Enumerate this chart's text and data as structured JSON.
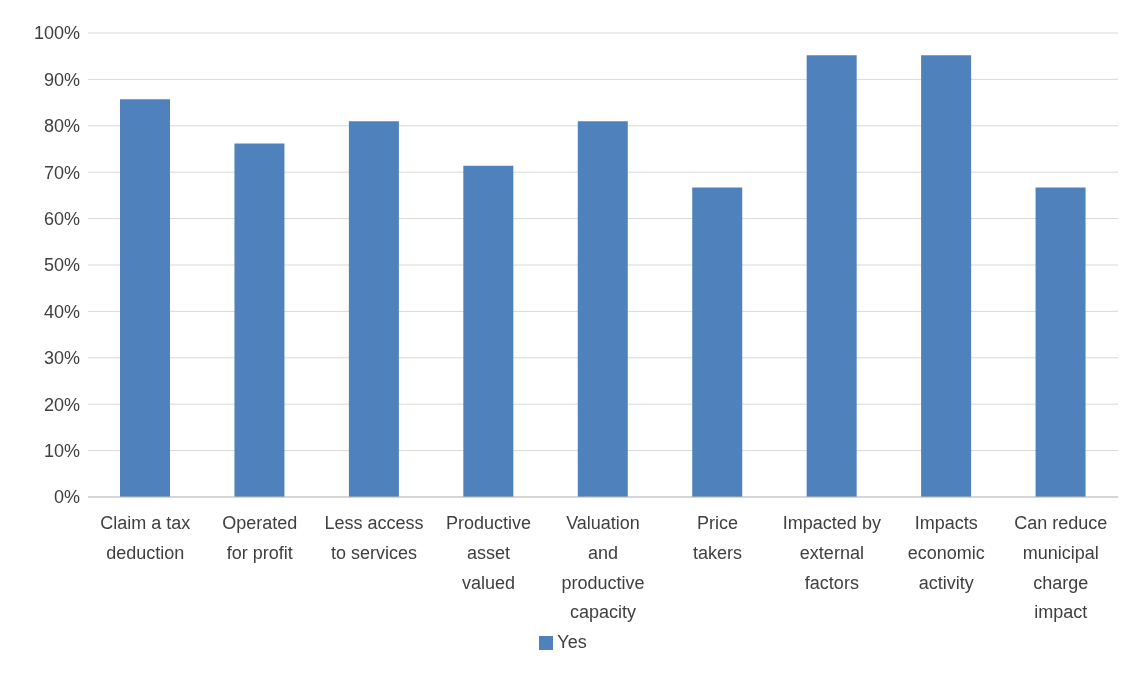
{
  "chart_data": {
    "type": "bar",
    "categories": [
      "Claim a tax deduction",
      "Operated for profit",
      "Less access to services",
      "Productive asset valued",
      "Valuation and productive capacity",
      "Price takers",
      "Impacted by external factors",
      "Impacts economic activity",
      "Can reduce municipal charge impact"
    ],
    "series": [
      {
        "name": "Yes",
        "color": "#4f81bd",
        "values": [
          85.7,
          76.2,
          81.0,
          71.4,
          81.0,
          66.7,
          95.2,
          95.2,
          66.7
        ]
      }
    ],
    "ylim": [
      0,
      100
    ],
    "yticks": [
      {
        "value": 0,
        "label": "0%"
      },
      {
        "value": 10,
        "label": "10%"
      },
      {
        "value": 20,
        "label": "20%"
      },
      {
        "value": 30,
        "label": "30%"
      },
      {
        "value": 40,
        "label": "40%"
      },
      {
        "value": 50,
        "label": "50%"
      },
      {
        "value": 60,
        "label": "60%"
      },
      {
        "value": 70,
        "label": "70%"
      },
      {
        "value": 80,
        "label": "80%"
      },
      {
        "value": 90,
        "label": "90%"
      },
      {
        "value": 100,
        "label": "100%"
      }
    ],
    "grid": "y",
    "legend": "bottom"
  }
}
